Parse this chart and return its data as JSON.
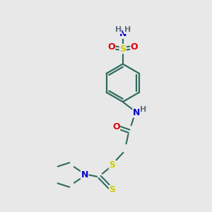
{
  "background_color": "#e8e8e8",
  "bond_color": "#2f6b5e",
  "atom_colors": {
    "N": "#0000cc",
    "O": "#dd0000",
    "S": "#cccc00",
    "H": "#607080",
    "C": "#2f6b5e"
  },
  "figsize": [
    3.0,
    3.0
  ],
  "dpi": 100,
  "xlim": [
    0,
    10
  ],
  "ylim": [
    0,
    10
  ]
}
